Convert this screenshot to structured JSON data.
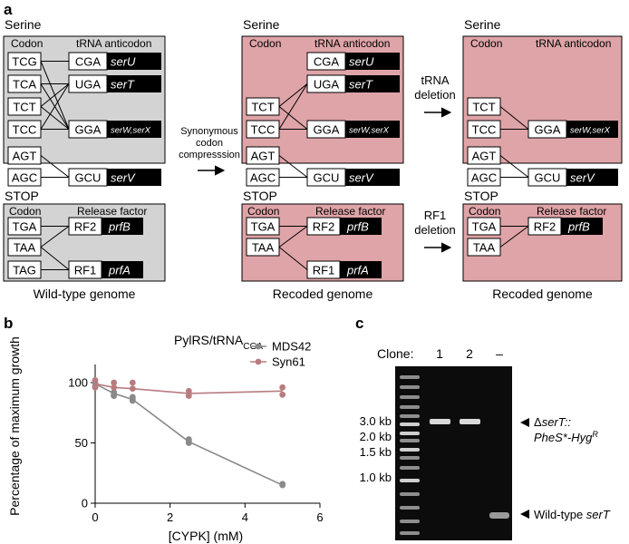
{
  "panels": {
    "a": "a",
    "b": "b",
    "c": "c"
  },
  "colors": {
    "wild_type_bg": "#d3d3d3",
    "recoded_bg": "#dfa4a8",
    "mds42": "#8a8a8a",
    "syn61": "#b87c80",
    "gel_bg": "#0c0c0c"
  },
  "schemes": [
    {
      "id": "wild",
      "serine_title": "Serine",
      "stop_title": "STOP",
      "codon_header": "Codon",
      "anticodon_header": "tRNA anticodon",
      "release_header": "Release factor",
      "serine_codons": [
        "TCG",
        "TCA",
        "TCT",
        "TCC",
        "AGT",
        "AGC"
      ],
      "trnas": [
        {
          "anticodon": "CGA",
          "gene": "serU"
        },
        {
          "anticodon": "UGA",
          "gene": "serT"
        },
        {
          "anticodon": "GGA",
          "gene": "serW,serX"
        },
        {
          "anticodon": "GCU",
          "gene": "serV"
        }
      ],
      "stop_codons": [
        "TGA",
        "TAA",
        "TAG"
      ],
      "release_factors": [
        {
          "name": "RF2",
          "gene": "prfB"
        },
        {
          "name": "RF1",
          "gene": "prfA"
        }
      ],
      "caption": "Wild-type genome"
    },
    {
      "id": "recoded1",
      "serine_title": "Serine",
      "stop_title": "STOP",
      "codon_header": "Codon",
      "anticodon_header": "tRNA anticodon",
      "release_header": "Release factor",
      "serine_codons": [
        "TCT",
        "TCC",
        "AGT",
        "AGC"
      ],
      "trnas": [
        {
          "anticodon": "CGA",
          "gene": "serU"
        },
        {
          "anticodon": "UGA",
          "gene": "serT"
        },
        {
          "anticodon": "GGA",
          "gene": "serW,serX"
        },
        {
          "anticodon": "GCU",
          "gene": "serV"
        }
      ],
      "stop_codons": [
        "TGA",
        "TAA"
      ],
      "release_factors": [
        {
          "name": "RF2",
          "gene": "prfB"
        },
        {
          "name": "RF1",
          "gene": "prfA"
        }
      ],
      "caption": "Recoded genome"
    },
    {
      "id": "recoded2",
      "serine_title": "Serine",
      "stop_title": "STOP",
      "codon_header": "Codon",
      "anticodon_header": "tRNA anticodon",
      "release_header": "Release factor",
      "serine_codons": [
        "TCT",
        "TCC",
        "AGT",
        "AGC"
      ],
      "trnas": [
        {
          "anticodon": "GGA",
          "gene": "serW,serX"
        },
        {
          "anticodon": "GCU",
          "gene": "serV"
        }
      ],
      "stop_codons": [
        "TGA",
        "TAA"
      ],
      "release_factors": [
        {
          "name": "RF2",
          "gene": "prfB"
        }
      ],
      "caption": "Recoded genome"
    }
  ],
  "transitions": {
    "compression": [
      "Synonymous",
      "codon",
      "compresssion"
    ],
    "trna_deletion": [
      "tRNA",
      "deletion"
    ],
    "rf1_deletion": [
      "RF1",
      "deletion"
    ]
  },
  "chart_data": {
    "type": "scatter",
    "title": "PylRS/tRNA",
    "title_subscript": "CGA",
    "xlabel": "[CYPK] (mM)",
    "ylabel": "Percentage of maximum growth",
    "xlim": [
      0,
      6
    ],
    "ylim": [
      0,
      100
    ],
    "xticks": [
      0,
      2,
      4,
      6
    ],
    "yticks": [
      0,
      50,
      100
    ],
    "legend_position": "top-right",
    "series": [
      {
        "name": "MDS42",
        "color": "#8a8a8a",
        "points": [
          [
            0,
            100
          ],
          [
            0,
            97
          ],
          [
            0.5,
            92
          ],
          [
            0.5,
            90
          ],
          [
            0.5,
            89
          ],
          [
            1,
            88
          ],
          [
            1,
            86
          ],
          [
            1,
            85
          ],
          [
            2.5,
            53
          ],
          [
            2.5,
            51
          ],
          [
            2.5,
            50
          ],
          [
            5,
            16
          ],
          [
            5,
            15
          ]
        ],
        "line": [
          [
            0,
            99
          ],
          [
            0.5,
            91
          ],
          [
            1,
            86
          ],
          [
            2.5,
            51
          ],
          [
            5,
            15
          ]
        ]
      },
      {
        "name": "Syn61",
        "color": "#b87c80",
        "points": [
          [
            0,
            102
          ],
          [
            0,
            96
          ],
          [
            0.5,
            100
          ],
          [
            0.5,
            96
          ],
          [
            1,
            100
          ],
          [
            1,
            95
          ],
          [
            2.5,
            93
          ],
          [
            2.5,
            89
          ],
          [
            5,
            96
          ],
          [
            5,
            90
          ]
        ],
        "line": [
          [
            0,
            99
          ],
          [
            0.5,
            96
          ],
          [
            1,
            95
          ],
          [
            2.5,
            91
          ],
          [
            5,
            93
          ]
        ]
      }
    ]
  },
  "gel": {
    "clone_label": "Clone:",
    "lanes": [
      "1",
      "2",
      "–"
    ],
    "ladder": [
      "3.0 kb",
      "2.0 kb",
      "1.5 kb",
      "1.0 kb"
    ],
    "band_upper_prefix": "Δ",
    "band_upper_gene": "serT::",
    "band_upper_line2": "PheS*-Hyg",
    "band_upper_sup": "R",
    "band_lower_prefix": "Wild-type ",
    "band_lower_gene": "serT"
  }
}
